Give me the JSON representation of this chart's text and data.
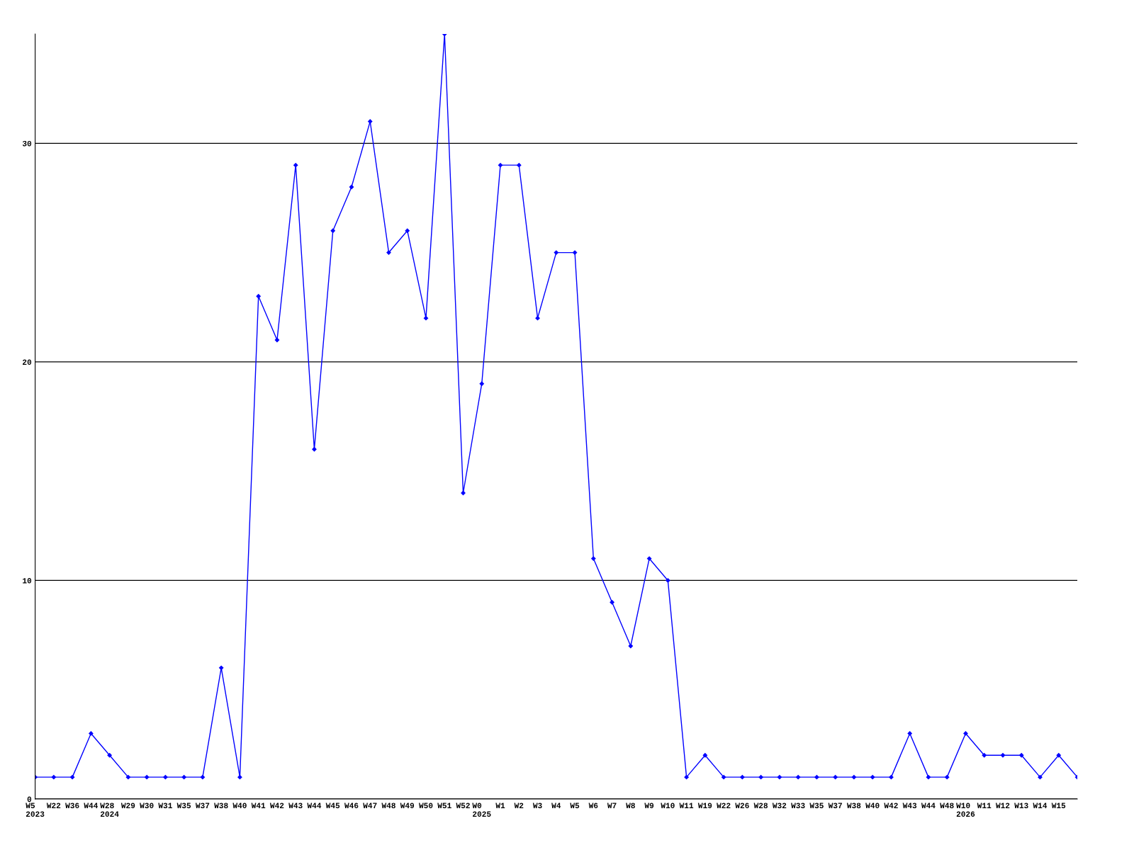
{
  "chart_data": {
    "type": "line",
    "categories": [
      "W5\n2023",
      "W22",
      "W36",
      "W44",
      "W28\n2024",
      "W29",
      "W30",
      "W31",
      "W35",
      "W37",
      "W38",
      "W40",
      "W41",
      "W42",
      "W43",
      "W44",
      "W45",
      "W46",
      "W47",
      "W48",
      "W49",
      "W50",
      "W51",
      "W52",
      "W0\n2025",
      "W1",
      "W2",
      "W3",
      "W4",
      "W5",
      "W6",
      "W7",
      "W8",
      "W9",
      "W10",
      "W11",
      "W19",
      "W22",
      "W26",
      "W28",
      "W32",
      "W33",
      "W35",
      "W37",
      "W38",
      "W40",
      "W42",
      "W43",
      "W44",
      "W48",
      "W10\n2026",
      "W11",
      "W12",
      "W13",
      "W14",
      "W15",
      null
    ],
    "series": [
      {
        "color": "#0000ff",
        "values": [
          1,
          1,
          1,
          3,
          2,
          1,
          1,
          1,
          1,
          1,
          6,
          1,
          23,
          21,
          29,
          16,
          26,
          28,
          31,
          25,
          26,
          22,
          35,
          14,
          19,
          29,
          29,
          22,
          25,
          25,
          11,
          9,
          7,
          11,
          10,
          1,
          2,
          1,
          1,
          1,
          1,
          1,
          1,
          1,
          1,
          1,
          1,
          3,
          1,
          1,
          3,
          2,
          2,
          2,
          1,
          2,
          1
        ]
      }
    ],
    "ylim": [
      0,
      35
    ],
    "yticks": [
      0,
      10,
      20,
      30
    ],
    "grid": "y",
    "marker": "diamond",
    "line_style": "solid"
  }
}
